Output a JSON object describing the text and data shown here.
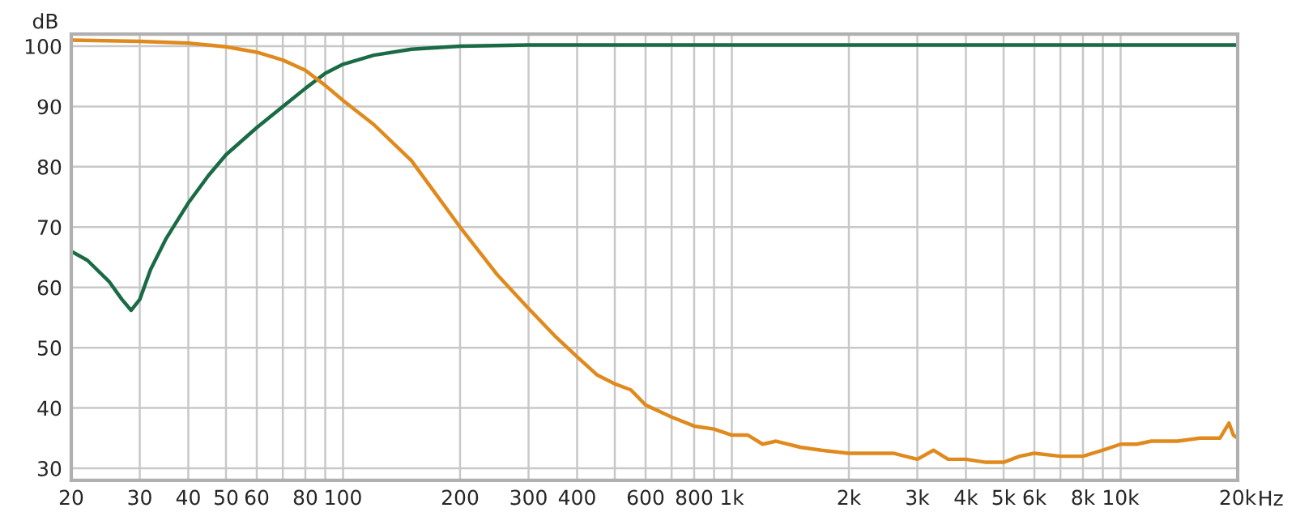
{
  "chart_data": {
    "type": "line",
    "ylabel": "dB",
    "log": "x",
    "grid": true,
    "marker": "none",
    "line_style": "solid",
    "xlim": [
      20,
      20000
    ],
    "ylim": [
      28,
      102
    ],
    "xticks": [
      20,
      30,
      40,
      50,
      60,
      {
        "value": 70,
        "label": null
      },
      80,
      {
        "value": 90,
        "label": null
      },
      100,
      200,
      300,
      400,
      {
        "value": 500,
        "label": null
      },
      600,
      {
        "value": 700,
        "label": null
      },
      800,
      {
        "value": 900,
        "label": null
      },
      {
        "value": 1000,
        "label": "1k"
      },
      {
        "value": 2000,
        "label": "2k"
      },
      {
        "value": 3000,
        "label": "3k"
      },
      {
        "value": 4000,
        "label": "4k"
      },
      {
        "value": 5000,
        "label": "5k"
      },
      {
        "value": 6000,
        "label": "6k"
      },
      {
        "value": 7000,
        "label": null
      },
      {
        "value": 8000,
        "label": "8k"
      },
      {
        "value": 9000,
        "label": null
      },
      {
        "value": 10000,
        "label": "10k"
      },
      {
        "value": 20000,
        "label": "20k"
      }
    ],
    "xlabel": "Hz",
    "yticks": [
      30,
      40,
      50,
      60,
      70,
      80,
      90,
      100
    ],
    "series": [
      {
        "color": "#1a6b45",
        "x": [
          20,
          22,
          25,
          27,
          28.5,
          30,
          32,
          35,
          40,
          45,
          50,
          60,
          70,
          80,
          90,
          100,
          120,
          150,
          200,
          300,
          1000,
          20000
        ],
        "values": [
          66,
          64.5,
          61,
          58,
          56.2,
          58,
          63,
          68,
          74,
          78.5,
          82,
          86.5,
          90,
          93,
          95.5,
          97,
          98.5,
          99.5,
          100,
          100.2,
          100.2,
          100.2
        ]
      },
      {
        "color": "#e08a1e",
        "x": [
          20,
          30,
          40,
          50,
          60,
          70,
          80,
          90,
          100,
          120,
          150,
          200,
          250,
          300,
          350,
          400,
          450,
          500,
          550,
          600,
          700,
          800,
          900,
          1000,
          1100,
          1200,
          1300,
          1500,
          1700,
          2000,
          2300,
          2600,
          3000,
          3300,
          3600,
          4000,
          4500,
          5000,
          5500,
          6000,
          7000,
          8000,
          9000,
          10000,
          11000,
          12000,
          14000,
          16000,
          18000,
          19000,
          19500,
          20000
        ],
        "values": [
          101,
          100.8,
          100.5,
          99.9,
          99,
          97.7,
          96,
          93.5,
          91,
          87,
          81,
          70,
          62,
          56.5,
          52,
          48.5,
          45.5,
          44,
          43,
          40.5,
          38.5,
          37,
          36.5,
          35.5,
          35.5,
          34,
          34.5,
          33.5,
          33,
          32.5,
          32.5,
          32.5,
          31.5,
          33,
          31.5,
          31.5,
          31,
          31,
          32,
          32.5,
          32,
          32,
          33,
          34,
          34,
          34.5,
          34.5,
          35,
          35,
          37.5,
          35.5,
          35
        ]
      }
    ]
  }
}
